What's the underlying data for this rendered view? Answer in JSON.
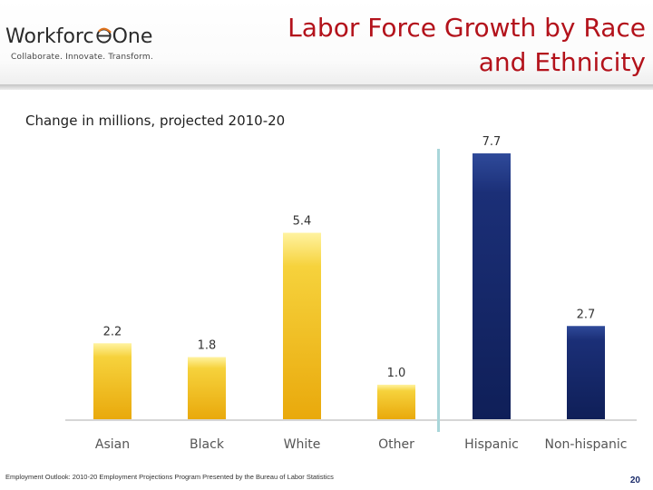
{
  "header": {
    "logo_name_prefix": "Workforc",
    "logo_name_suffix": "One",
    "logo_tagline": "Collaborate.  Innovate.  Transform.",
    "title_line1": "Labor Force Growth by Race",
    "title_line2": "and Ethnicity"
  },
  "footer": {
    "source": "Employment Outlook: 2010-20 Employment Projections Program Presented by the Bureau of Labor Statistics",
    "page_number": "20"
  },
  "colors": {
    "title": "#b3121b",
    "race_bar": "#f3c21b",
    "ethnicity_bar": "#15296b",
    "divider": "#a9d6da"
  },
  "chart_data": {
    "type": "bar",
    "subtitle": "Change in millions, projected 2010-20",
    "ylim": [
      0,
      8.2
    ],
    "groups": [
      {
        "name": "Race",
        "categories": [
          "Asian",
          "Black",
          "White",
          "Other"
        ],
        "values": [
          2.2,
          1.8,
          5.4,
          1.0
        ],
        "labels": [
          "2.2",
          "1.8",
          "5.4",
          "1.0"
        ]
      },
      {
        "name": "Ethnicity",
        "categories": [
          "Hispanic",
          "Non-hispanic"
        ],
        "values": [
          7.7,
          2.7
        ],
        "labels": [
          "7.7",
          "2.7"
        ]
      }
    ],
    "grid": false,
    "legend": "none"
  }
}
